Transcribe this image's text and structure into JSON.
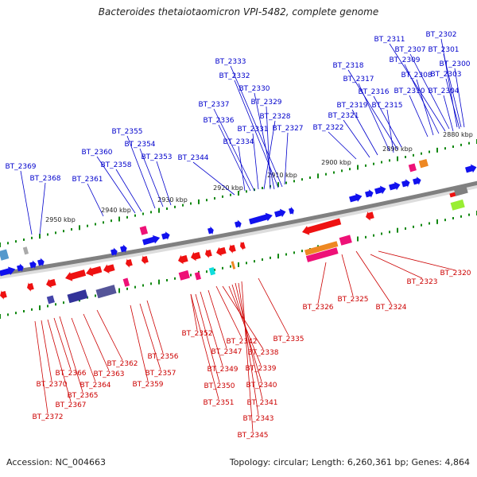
{
  "title": "Bacteroides thetaiotaomicron VPI-5482, complete genome",
  "footer": {
    "accession": "Accession: NC_004663",
    "info": "Topology: circular; Length: 6,260,361 bp; Genes: 4,864"
  },
  "colors": {
    "forward_label": "#0000cc",
    "reverse_label": "#cc0000",
    "backbone": "#808080",
    "tick": "#118811"
  },
  "scale_labels": [
    "2880 kbp",
    "2890 kbp",
    "2900 kbp",
    "2910 kbp",
    "2920 kbp",
    "2930 kbp",
    "2940 kbp",
    "2950 kbp"
  ],
  "forward_genes": [
    "BT_2302",
    "BT_2311",
    "BT_2301",
    "BT_2307",
    "BT_2300",
    "BT_2309",
    "BT_2303",
    "BT_2318",
    "BT_2308",
    "BT_2317",
    "BT_2316",
    "BT_2310",
    "BT_2304",
    "BT_2319",
    "BT_2315",
    "BT_2321",
    "BT_2322",
    "BT_2333",
    "BT_2332",
    "BT_2330",
    "BT_2329",
    "BT_2337",
    "BT_2328",
    "BT_2336",
    "BT_2331",
    "BT_2327",
    "BT_2334",
    "BT_2355",
    "BT_2354",
    "BT_2360",
    "BT_2353",
    "BT_2344",
    "BT_2358",
    "BT_2369",
    "BT_2368",
    "BT_2361"
  ],
  "reverse_genes": [
    "BT_2320",
    "BT_2323",
    "BT_2326",
    "BT_2325",
    "BT_2324",
    "BT_2335",
    "BT_2352",
    "BT_2342",
    "BT_2347",
    "BT_2338",
    "BT_2356",
    "BT_2362",
    "BT_2339",
    "BT_2349",
    "BT_2366",
    "BT_2363",
    "BT_2357",
    "BT_2370",
    "BT_2364",
    "BT_2359",
    "BT_2350",
    "BT_2340",
    "BT_2365",
    "BT_2367",
    "BT_2351",
    "BT_2341",
    "BT_2372",
    "BT_2343",
    "BT_2345"
  ]
}
